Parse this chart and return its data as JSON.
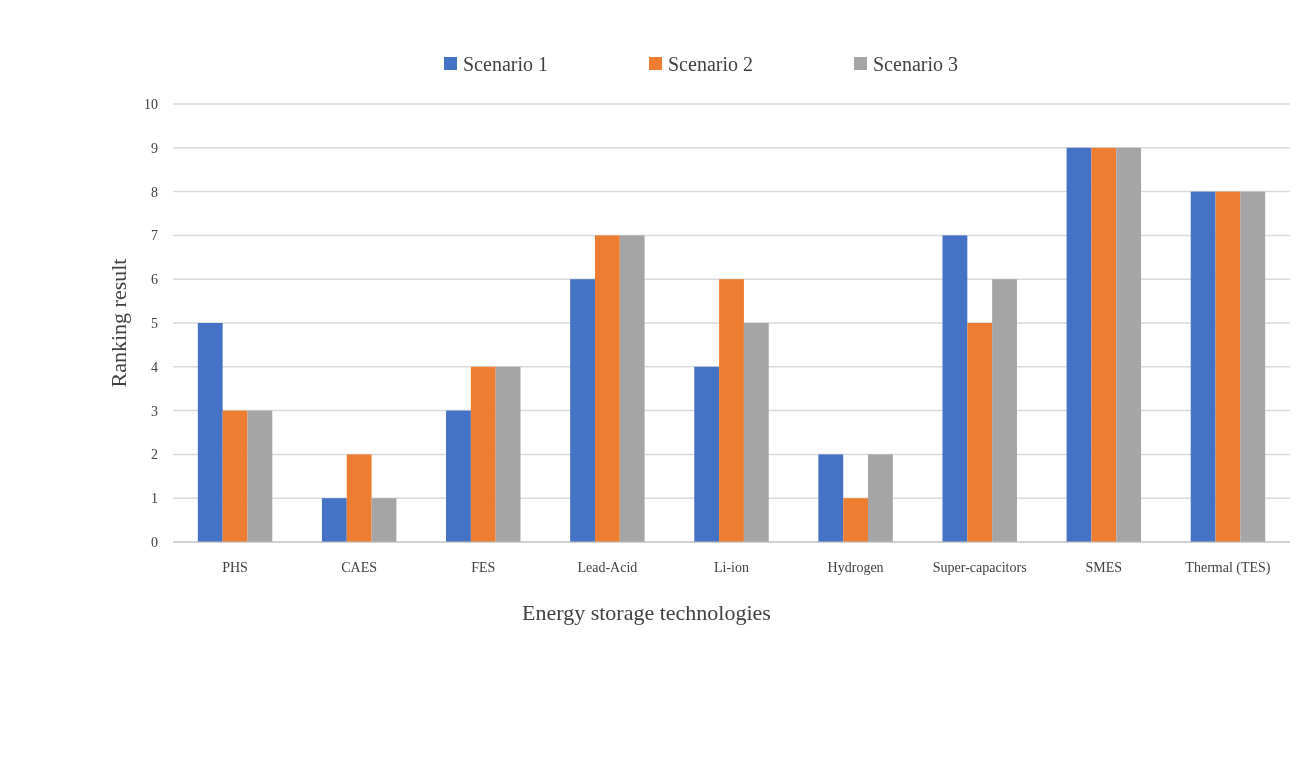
{
  "chart_data": {
    "type": "bar",
    "xlabel": "Energy storage technologies",
    "ylabel": "Ranking result",
    "categories": [
      "PHS",
      "CAES",
      "FES",
      "Lead-Acid",
      "Li-ion",
      "Hydrogen",
      "Super-capacitors",
      "SMES",
      "Thermal (TES)"
    ],
    "series": [
      {
        "name": "Scenario 1",
        "color": "#4472c4",
        "values": [
          5,
          1,
          3,
          6,
          4,
          2,
          7,
          9,
          8
        ]
      },
      {
        "name": "Scenario 2",
        "color": "#ed7d31",
        "values": [
          3,
          2,
          4,
          7,
          6,
          1,
          5,
          9,
          8
        ]
      },
      {
        "name": "Scenario 3",
        "color": "#a5a5a5",
        "values": [
          3,
          1,
          4,
          7,
          5,
          2,
          6,
          9,
          8
        ]
      }
    ],
    "ylim": [
      0,
      10
    ],
    "yticks": [
      0,
      1,
      2,
      3,
      4,
      5,
      6,
      7,
      8,
      9,
      10
    ],
    "grid": "y",
    "legend": "top"
  }
}
